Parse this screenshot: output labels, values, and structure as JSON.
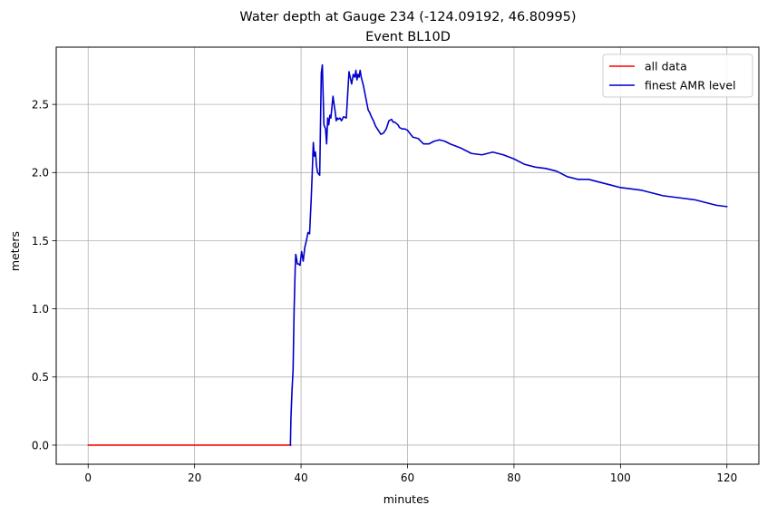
{
  "chart_data": {
    "type": "line",
    "title": "Water depth at Gauge 234 (-124.09192, 46.80995)",
    "subtitle": "Event BL10D",
    "xlabel": "minutes",
    "ylabel": "meters",
    "xlim": [
      -6,
      126
    ],
    "ylim": [
      -0.14,
      2.92
    ],
    "xticks": [
      0,
      20,
      40,
      60,
      80,
      100,
      120
    ],
    "yticks": [
      0.0,
      0.5,
      1.0,
      1.5,
      2.0,
      2.5
    ],
    "xtick_labels": [
      "0",
      "20",
      "40",
      "60",
      "80",
      "100",
      "120"
    ],
    "ytick_labels": [
      "0.0",
      "0.5",
      "1.0",
      "1.5",
      "2.0",
      "2.5"
    ],
    "grid": true,
    "legend_position": "top-right",
    "series": [
      {
        "name": "all data",
        "color": "#ff0000",
        "x": [
          0,
          10,
          20,
          30,
          38.0,
          38.1
        ],
        "y": [
          0.0,
          0.0,
          0.0,
          0.0,
          0.0,
          0.0
        ]
      },
      {
        "name": "finest AMR level",
        "color": "#0000cc",
        "x": [
          38.0,
          38.1,
          38.3,
          38.5,
          38.7,
          38.9,
          39.0,
          39.1,
          39.3,
          39.5,
          39.8,
          40.1,
          40.4,
          40.7,
          41.0,
          41.3,
          41.6,
          41.9,
          42.1,
          42.3,
          42.5,
          42.7,
          42.9,
          43.1,
          43.3,
          43.5,
          43.8,
          44.0,
          44.3,
          44.6,
          44.8,
          45.0,
          45.2,
          45.4,
          45.6,
          45.8,
          46.0,
          46.2,
          46.4,
          46.6,
          46.8,
          47.0,
          47.3,
          47.6,
          48.0,
          48.5,
          49.0,
          49.5,
          49.8,
          50.1,
          50.3,
          50.5,
          50.7,
          50.9,
          51.1,
          51.3,
          51.5,
          51.7,
          52.0,
          52.3,
          52.6,
          52.9,
          53.2,
          53.6,
          54.0,
          54.5,
          55.0,
          55.5,
          56.0,
          56.5,
          57.0,
          57.3,
          57.6,
          57.9,
          58.2,
          58.5,
          59.0,
          59.5,
          60.0,
          61.0,
          62.0,
          63.0,
          64.0,
          65.0,
          66.0,
          67.0,
          68.0,
          70.0,
          72.0,
          74.0,
          76.0,
          78.0,
          80.0,
          82.0,
          84.0,
          86.0,
          88.0,
          90.0,
          92.0,
          94.0,
          96.0,
          98.0,
          100.0,
          102.0,
          104.0,
          106.0,
          108.0,
          110.0,
          112.0,
          114.0,
          116.0,
          118.0,
          120.0
        ],
        "y": [
          0.0,
          0.2,
          0.4,
          0.55,
          1.0,
          1.3,
          1.4,
          1.38,
          1.33,
          1.33,
          1.32,
          1.42,
          1.35,
          1.45,
          1.5,
          1.56,
          1.55,
          1.8,
          2.0,
          2.22,
          2.12,
          2.15,
          2.05,
          2.0,
          1.99,
          1.98,
          2.73,
          2.79,
          2.35,
          2.32,
          2.21,
          2.4,
          2.35,
          2.42,
          2.4,
          2.48,
          2.56,
          2.5,
          2.45,
          2.38,
          2.4,
          2.39,
          2.4,
          2.38,
          2.41,
          2.4,
          2.74,
          2.65,
          2.72,
          2.7,
          2.75,
          2.68,
          2.72,
          2.7,
          2.75,
          2.7,
          2.67,
          2.64,
          2.58,
          2.52,
          2.46,
          2.44,
          2.41,
          2.38,
          2.34,
          2.31,
          2.28,
          2.29,
          2.32,
          2.38,
          2.39,
          2.37,
          2.37,
          2.36,
          2.35,
          2.33,
          2.32,
          2.32,
          2.31,
          2.26,
          2.25,
          2.21,
          2.21,
          2.23,
          2.24,
          2.23,
          2.21,
          2.18,
          2.14,
          2.13,
          2.15,
          2.13,
          2.1,
          2.06,
          2.04,
          2.03,
          2.01,
          1.97,
          1.95,
          1.95,
          1.93,
          1.91,
          1.89,
          1.88,
          1.87,
          1.85,
          1.83,
          1.82,
          1.81,
          1.8,
          1.78,
          1.76,
          1.75
        ]
      }
    ]
  }
}
